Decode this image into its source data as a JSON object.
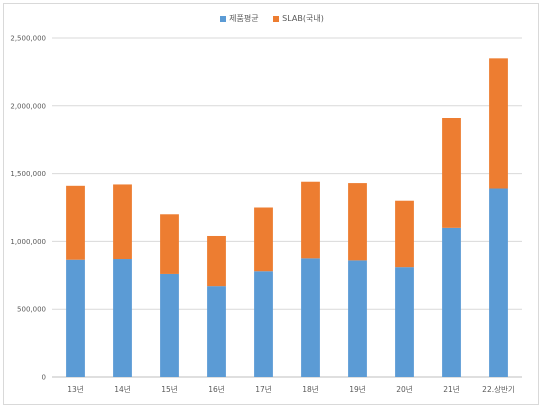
{
  "chart_data": {
    "type": "bar",
    "stacked": true,
    "categories": [
      "13년",
      "14년",
      "15년",
      "16년",
      "17년",
      "18년",
      "19년",
      "20년",
      "21년",
      "22.상반기"
    ],
    "series": [
      {
        "name": "제품평균",
        "color": "#5b9bd5",
        "values": [
          865000,
          870000,
          760000,
          670000,
          780000,
          875000,
          860000,
          810000,
          1100000,
          1390000
        ]
      },
      {
        "name": "SLAB(국내)",
        "color": "#ed7d31",
        "values": [
          545000,
          550000,
          440000,
          370000,
          470000,
          565000,
          570000,
          490000,
          810000,
          960000
        ]
      }
    ],
    "yticks": [
      "0",
      "500,000",
      "1,000,000",
      "1,500,000",
      "2,000,000",
      "2,500,000"
    ],
    "ylim": [
      0,
      2500000
    ],
    "grid": true,
    "legend": "top-center"
  }
}
